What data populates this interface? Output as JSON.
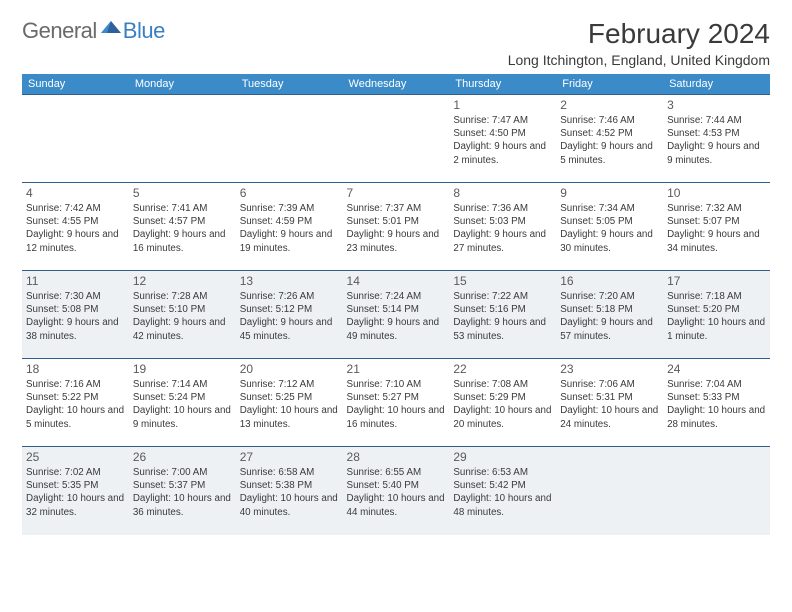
{
  "logo": {
    "general": "General",
    "blue": "Blue"
  },
  "title": "February 2024",
  "location": "Long Itchington, England, United Kingdom",
  "colors": {
    "header_bg": "#3b8bc9",
    "header_text": "#ffffff",
    "border": "#2f5f8f",
    "shade_bg": "#eef1f4",
    "text": "#3a3a3a",
    "logo_gray": "#6a6a6a",
    "logo_blue": "#3b7fc4"
  },
  "dayHeaders": [
    "Sunday",
    "Monday",
    "Tuesday",
    "Wednesday",
    "Thursday",
    "Friday",
    "Saturday"
  ],
  "weeks": [
    [
      null,
      null,
      null,
      null,
      {
        "day": "1",
        "sunrise": "7:47 AM",
        "sunset": "4:50 PM",
        "daylight": "9 hours and 2 minutes."
      },
      {
        "day": "2",
        "sunrise": "7:46 AM",
        "sunset": "4:52 PM",
        "daylight": "9 hours and 5 minutes."
      },
      {
        "day": "3",
        "sunrise": "7:44 AM",
        "sunset": "4:53 PM",
        "daylight": "9 hours and 9 minutes."
      }
    ],
    [
      {
        "day": "4",
        "sunrise": "7:42 AM",
        "sunset": "4:55 PM",
        "daylight": "9 hours and 12 minutes."
      },
      {
        "day": "5",
        "sunrise": "7:41 AM",
        "sunset": "4:57 PM",
        "daylight": "9 hours and 16 minutes."
      },
      {
        "day": "6",
        "sunrise": "7:39 AM",
        "sunset": "4:59 PM",
        "daylight": "9 hours and 19 minutes."
      },
      {
        "day": "7",
        "sunrise": "7:37 AM",
        "sunset": "5:01 PM",
        "daylight": "9 hours and 23 minutes."
      },
      {
        "day": "8",
        "sunrise": "7:36 AM",
        "sunset": "5:03 PM",
        "daylight": "9 hours and 27 minutes."
      },
      {
        "day": "9",
        "sunrise": "7:34 AM",
        "sunset": "5:05 PM",
        "daylight": "9 hours and 30 minutes."
      },
      {
        "day": "10",
        "sunrise": "7:32 AM",
        "sunset": "5:07 PM",
        "daylight": "9 hours and 34 minutes."
      }
    ],
    [
      {
        "day": "11",
        "sunrise": "7:30 AM",
        "sunset": "5:08 PM",
        "daylight": "9 hours and 38 minutes."
      },
      {
        "day": "12",
        "sunrise": "7:28 AM",
        "sunset": "5:10 PM",
        "daylight": "9 hours and 42 minutes."
      },
      {
        "day": "13",
        "sunrise": "7:26 AM",
        "sunset": "5:12 PM",
        "daylight": "9 hours and 45 minutes."
      },
      {
        "day": "14",
        "sunrise": "7:24 AM",
        "sunset": "5:14 PM",
        "daylight": "9 hours and 49 minutes."
      },
      {
        "day": "15",
        "sunrise": "7:22 AM",
        "sunset": "5:16 PM",
        "daylight": "9 hours and 53 minutes."
      },
      {
        "day": "16",
        "sunrise": "7:20 AM",
        "sunset": "5:18 PM",
        "daylight": "9 hours and 57 minutes."
      },
      {
        "day": "17",
        "sunrise": "7:18 AM",
        "sunset": "5:20 PM",
        "daylight": "10 hours and 1 minute."
      }
    ],
    [
      {
        "day": "18",
        "sunrise": "7:16 AM",
        "sunset": "5:22 PM",
        "daylight": "10 hours and 5 minutes."
      },
      {
        "day": "19",
        "sunrise": "7:14 AM",
        "sunset": "5:24 PM",
        "daylight": "10 hours and 9 minutes."
      },
      {
        "day": "20",
        "sunrise": "7:12 AM",
        "sunset": "5:25 PM",
        "daylight": "10 hours and 13 minutes."
      },
      {
        "day": "21",
        "sunrise": "7:10 AM",
        "sunset": "5:27 PM",
        "daylight": "10 hours and 16 minutes."
      },
      {
        "day": "22",
        "sunrise": "7:08 AM",
        "sunset": "5:29 PM",
        "daylight": "10 hours and 20 minutes."
      },
      {
        "day": "23",
        "sunrise": "7:06 AM",
        "sunset": "5:31 PM",
        "daylight": "10 hours and 24 minutes."
      },
      {
        "day": "24",
        "sunrise": "7:04 AM",
        "sunset": "5:33 PM",
        "daylight": "10 hours and 28 minutes."
      }
    ],
    [
      {
        "day": "25",
        "sunrise": "7:02 AM",
        "sunset": "5:35 PM",
        "daylight": "10 hours and 32 minutes."
      },
      {
        "day": "26",
        "sunrise": "7:00 AM",
        "sunset": "5:37 PM",
        "daylight": "10 hours and 36 minutes."
      },
      {
        "day": "27",
        "sunrise": "6:58 AM",
        "sunset": "5:38 PM",
        "daylight": "10 hours and 40 minutes."
      },
      {
        "day": "28",
        "sunrise": "6:55 AM",
        "sunset": "5:40 PM",
        "daylight": "10 hours and 44 minutes."
      },
      {
        "day": "29",
        "sunrise": "6:53 AM",
        "sunset": "5:42 PM",
        "daylight": "10 hours and 48 minutes."
      },
      null,
      null
    ]
  ],
  "labels": {
    "sunrise": "Sunrise:",
    "sunset": "Sunset:",
    "daylight": "Daylight:"
  }
}
